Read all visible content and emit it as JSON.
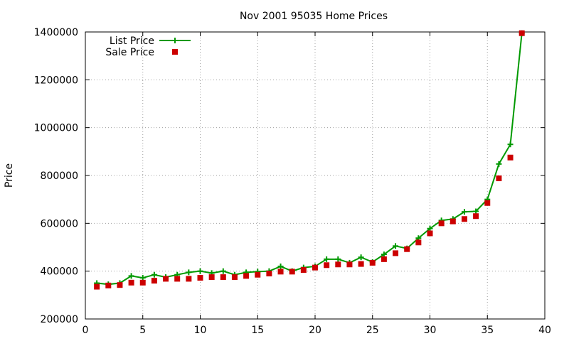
{
  "chart_data": {
    "type": "line",
    "title": "Nov 2001 95035 Home Prices",
    "xlabel": "",
    "ylabel": "Price",
    "xlim": [
      0,
      40
    ],
    "ylim": [
      200000,
      1400000
    ],
    "xticks": [
      0,
      5,
      10,
      15,
      20,
      25,
      30,
      35,
      40
    ],
    "yticks": [
      200000,
      400000,
      600000,
      800000,
      1000000,
      1200000,
      1400000
    ],
    "grid": true,
    "legend_position": "top-left",
    "x": [
      1,
      2,
      3,
      4,
      5,
      6,
      7,
      8,
      9,
      10,
      11,
      12,
      13,
      14,
      15,
      16,
      17,
      18,
      19,
      20,
      21,
      22,
      23,
      24,
      25,
      26,
      27,
      28,
      29,
      30,
      31,
      32,
      33,
      34,
      35,
      36,
      37,
      38
    ],
    "series": [
      {
        "name": "List Price",
        "style": "line+cross",
        "color": "#009900",
        "values": [
          350000,
          345000,
          350000,
          380000,
          372000,
          385000,
          375000,
          385000,
          395000,
          400000,
          392000,
          400000,
          385000,
          395000,
          398000,
          400000,
          420000,
          400000,
          415000,
          420000,
          450000,
          450000,
          435000,
          458000,
          438000,
          470000,
          505000,
          495000,
          538000,
          578000,
          612000,
          618000,
          648000,
          650000,
          700000,
          848000,
          930000,
          1395000
        ]
      },
      {
        "name": "Sale Price",
        "style": "square-markers",
        "color": "#cc0000",
        "values": [
          335000,
          340000,
          342000,
          352000,
          352000,
          360000,
          368000,
          368000,
          368000,
          372000,
          375000,
          375000,
          375000,
          380000,
          385000,
          390000,
          398000,
          398000,
          405000,
          415000,
          425000,
          428000,
          428000,
          430000,
          435000,
          450000,
          475000,
          492000,
          520000,
          558000,
          600000,
          608000,
          618000,
          630000,
          685000,
          788000,
          875000,
          1395000
        ]
      }
    ]
  }
}
